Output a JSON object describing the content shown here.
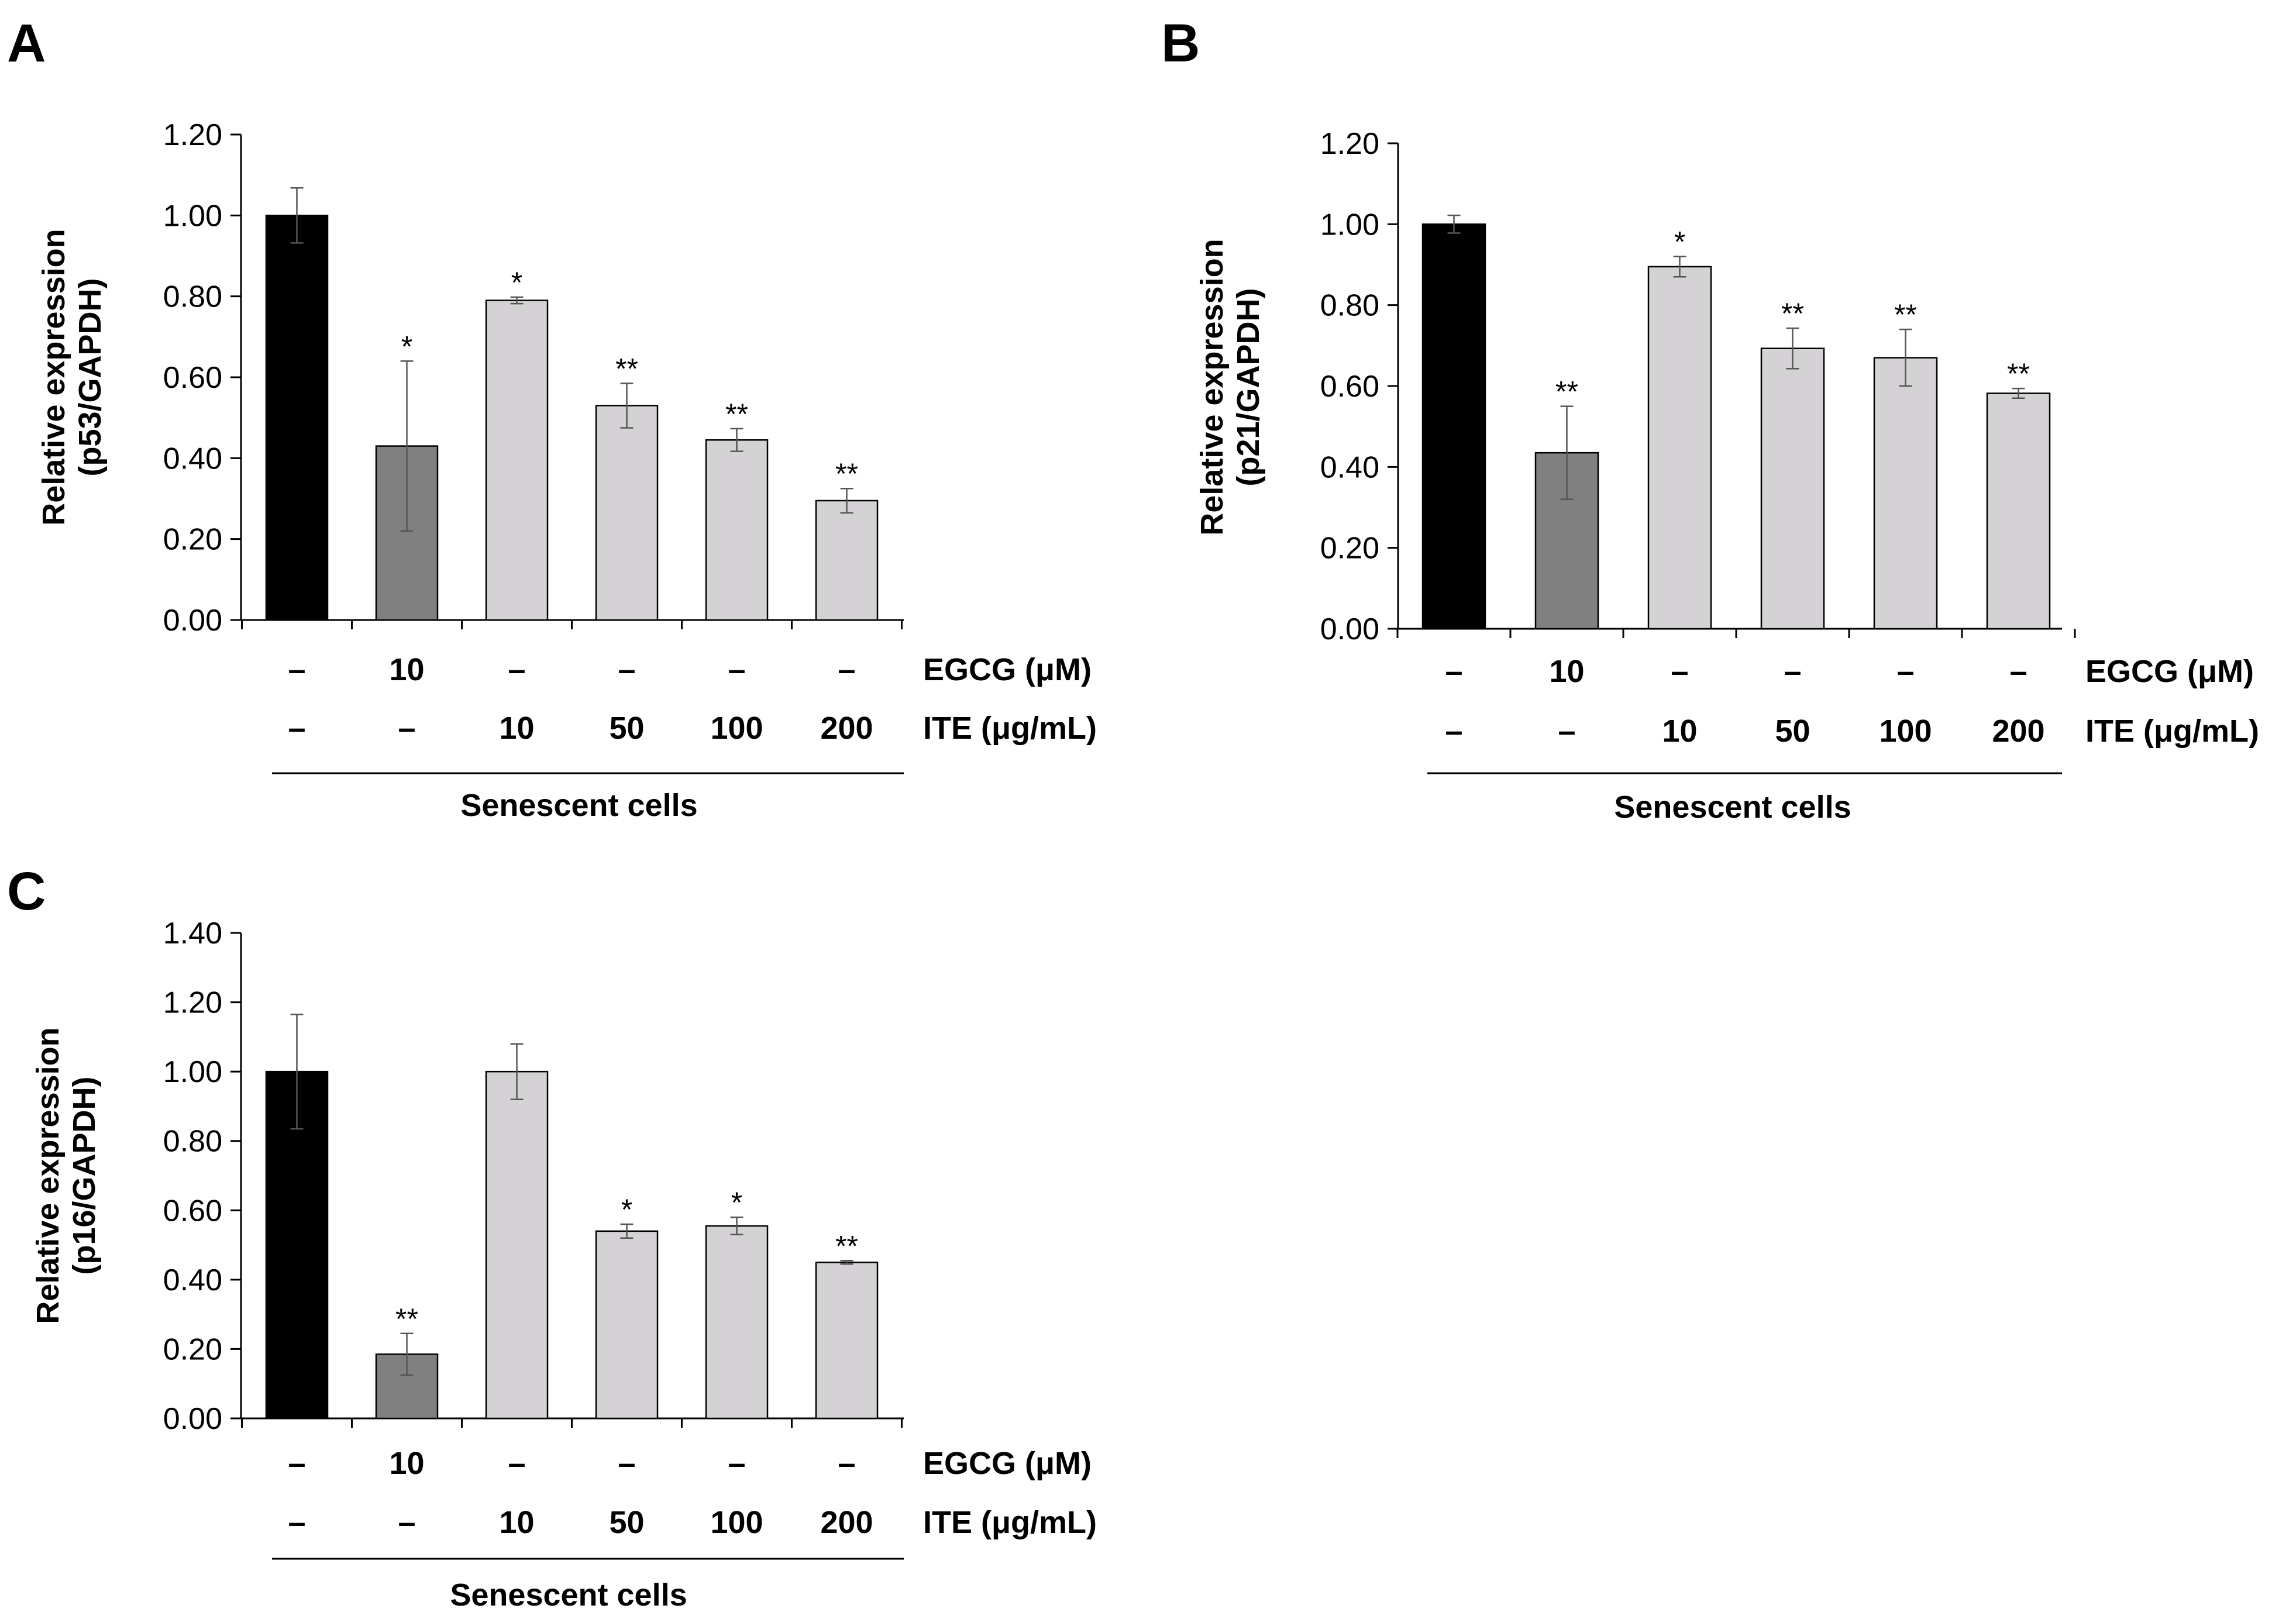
{
  "colors": {
    "control": "#000000",
    "egcg": "#808080",
    "ite": "#d4d2d4"
  },
  "chart_data": [
    {
      "panel": "A",
      "type": "bar",
      "ylabel_lines": [
        "Relative expression",
        "(p53/GAPDH)"
      ],
      "ylim": [
        0,
        1.2
      ],
      "yticks": [
        "0.00",
        "0.20",
        "0.40",
        "0.60",
        "0.80",
        "1.00",
        "1.20"
      ],
      "values": [
        1.0,
        0.43,
        0.79,
        0.53,
        0.445,
        0.295
      ],
      "errors": [
        0.068,
        0.21,
        0.008,
        0.055,
        0.028,
        0.03
      ],
      "significance": [
        "",
        "*",
        "*",
        "**",
        "**",
        "**"
      ],
      "bar_groups": [
        "control",
        "egcg",
        "ite",
        "ite",
        "ite",
        "ite"
      ],
      "conditions": [
        {
          "label": "EGCG (μM)",
          "values": [
            "–",
            "10",
            "–",
            "–",
            "–",
            "–"
          ]
        },
        {
          "label": "ITE (μg/mL)",
          "values": [
            "–",
            "–",
            "10",
            "50",
            "100",
            "200"
          ]
        }
      ],
      "group_label": "Senescent cells"
    },
    {
      "panel": "B",
      "type": "bar",
      "ylabel_lines": [
        "Relative expression",
        "(p21/GAPDH)"
      ],
      "ylim": [
        0,
        1.2
      ],
      "yticks": [
        "0.00",
        "0.20",
        "0.40",
        "0.60",
        "0.80",
        "1.00",
        "1.20"
      ],
      "values": [
        1.0,
        0.435,
        0.895,
        0.693,
        0.67,
        0.582
      ],
      "errors": [
        0.022,
        0.115,
        0.025,
        0.05,
        0.07,
        0.012
      ],
      "significance": [
        "",
        "**",
        "*",
        "**",
        "**",
        "**"
      ],
      "bar_groups": [
        "control",
        "egcg",
        "ite",
        "ite",
        "ite",
        "ite"
      ],
      "conditions": [
        {
          "label": "EGCG (μM)",
          "values": [
            "–",
            "10",
            "–",
            "–",
            "–",
            "–"
          ]
        },
        {
          "label": "ITE (μg/mL)",
          "values": [
            "–",
            "–",
            "10",
            "50",
            "100",
            "200"
          ]
        }
      ],
      "group_label": "Senescent cells"
    },
    {
      "panel": "C",
      "type": "bar",
      "ylabel_lines": [
        "Relative expression",
        "(p16/GAPDH)"
      ],
      "ylim": [
        0,
        1.4
      ],
      "yticks": [
        "0.00",
        "0.20",
        "0.40",
        "0.60",
        "0.80",
        "1.00",
        "1.20",
        "1.40"
      ],
      "values": [
        1.0,
        0.185,
        1.0,
        0.54,
        0.555,
        0.45
      ],
      "errors": [
        0.165,
        0.06,
        0.08,
        0.02,
        0.025,
        0.005
      ],
      "significance": [
        "",
        "**",
        "",
        "*",
        "*",
        "**"
      ],
      "bar_groups": [
        "control",
        "egcg",
        "ite",
        "ite",
        "ite",
        "ite"
      ],
      "conditions": [
        {
          "label": "EGCG (μM)",
          "values": [
            "–",
            "10",
            "–",
            "–",
            "–",
            "–"
          ]
        },
        {
          "label": "ITE (μg/mL)",
          "values": [
            "–",
            "–",
            "10",
            "50",
            "100",
            "200"
          ]
        }
      ],
      "group_label": "Senescent cells"
    }
  ]
}
